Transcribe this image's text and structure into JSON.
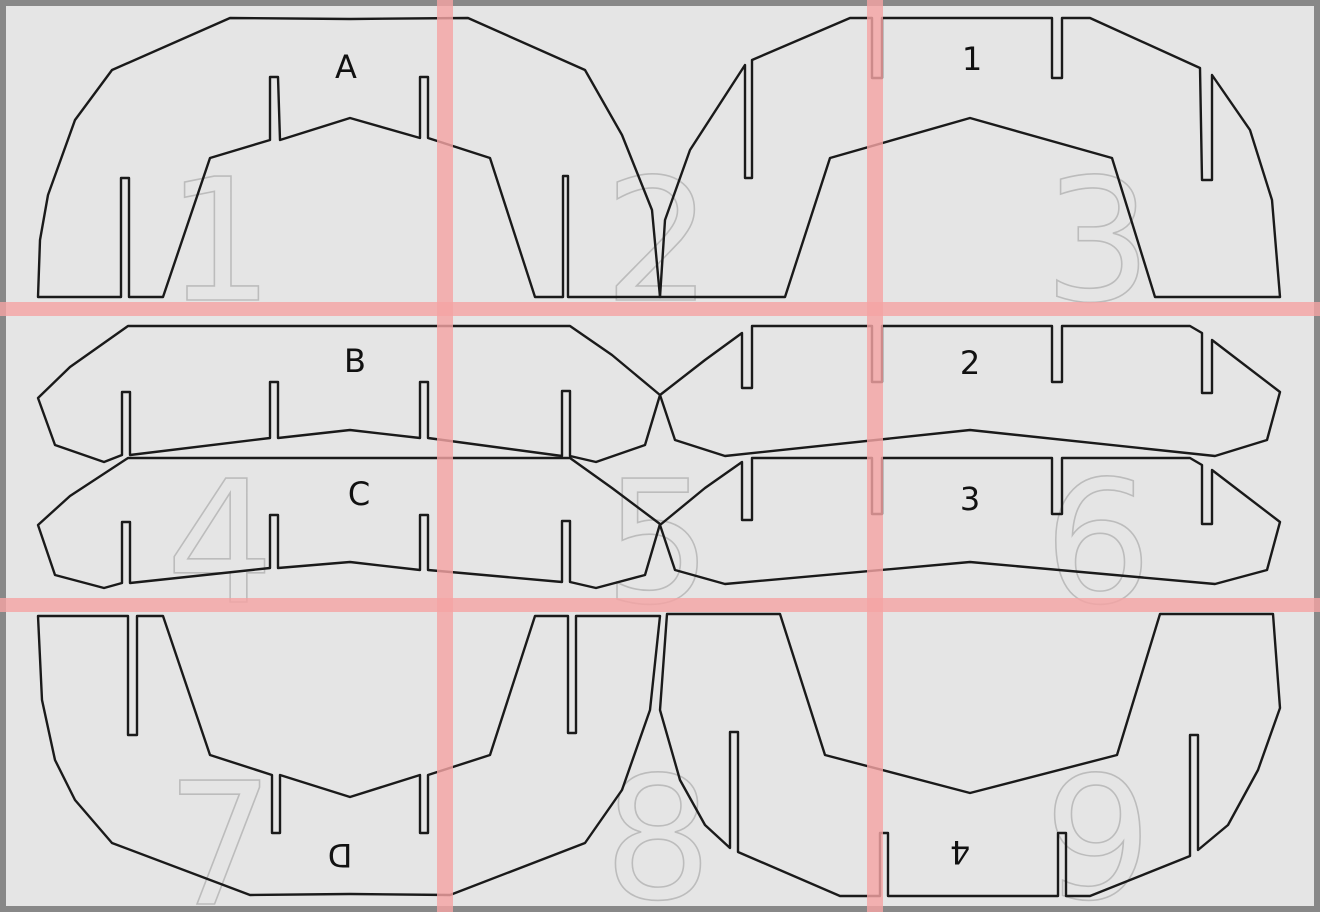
{
  "parts": [
    {
      "id": "a",
      "label": "A"
    },
    {
      "id": "b",
      "label": "B"
    },
    {
      "id": "c",
      "label": "C"
    },
    {
      "id": "d",
      "label": "D"
    },
    {
      "id": "rib1",
      "label": "1"
    },
    {
      "id": "rib2",
      "label": "2"
    },
    {
      "id": "rib3",
      "label": "3"
    },
    {
      "id": "rib4",
      "label": "4"
    }
  ],
  "tiles": [
    "1",
    "2",
    "3",
    "4",
    "5",
    "6",
    "7",
    "8",
    "9"
  ],
  "colors": {
    "sheet": "#e5e5e5",
    "border": "#888888",
    "outline": "#1a1a1a",
    "grid": "#f4a3a3",
    "tile_number": "#bcbcbc"
  }
}
